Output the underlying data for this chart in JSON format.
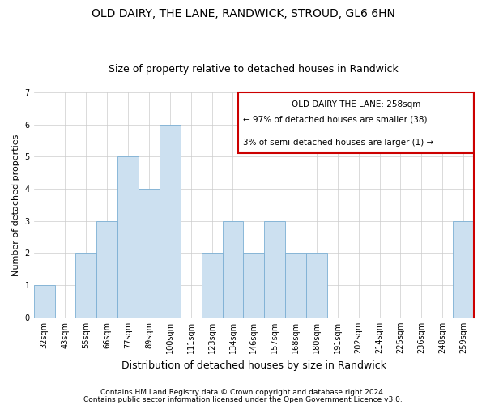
{
  "title": "OLD DAIRY, THE LANE, RANDWICK, STROUD, GL6 6HN",
  "subtitle": "Size of property relative to detached houses in Randwick",
  "xlabel": "Distribution of detached houses by size in Randwick",
  "ylabel": "Number of detached properties",
  "bar_color": "#cce0f0",
  "bar_edge_color": "#7bafd4",
  "categories": [
    "32sqm",
    "43sqm",
    "55sqm",
    "66sqm",
    "77sqm",
    "89sqm",
    "100sqm",
    "111sqm",
    "123sqm",
    "134sqm",
    "146sqm",
    "157sqm",
    "168sqm",
    "180sqm",
    "191sqm",
    "202sqm",
    "214sqm",
    "225sqm",
    "236sqm",
    "248sqm",
    "259sqm"
  ],
  "values": [
    1,
    0,
    2,
    3,
    5,
    4,
    6,
    0,
    2,
    3,
    2,
    3,
    2,
    2,
    0,
    0,
    0,
    0,
    0,
    0,
    3
  ],
  "ylim": [
    0,
    7
  ],
  "yticks": [
    0,
    1,
    2,
    3,
    4,
    5,
    6,
    7
  ],
  "red_box_text_line1": "OLD DAIRY THE LANE: 258sqm",
  "red_box_text_line2": "← 97% of detached houses are smaller (38)",
  "red_box_text_line3": "3% of semi-detached houses are larger (1) →",
  "red_color": "#cc0000",
  "footnote1": "Contains HM Land Registry data © Crown copyright and database right 2024.",
  "footnote2": "Contains public sector information licensed under the Open Government Licence v3.0.",
  "grid_color": "#cccccc",
  "title_fontsize": 10,
  "subtitle_fontsize": 9,
  "xlabel_fontsize": 9,
  "ylabel_fontsize": 8,
  "tick_fontsize": 7,
  "annotation_fontsize": 7.5,
  "footnote_fontsize": 6.5
}
